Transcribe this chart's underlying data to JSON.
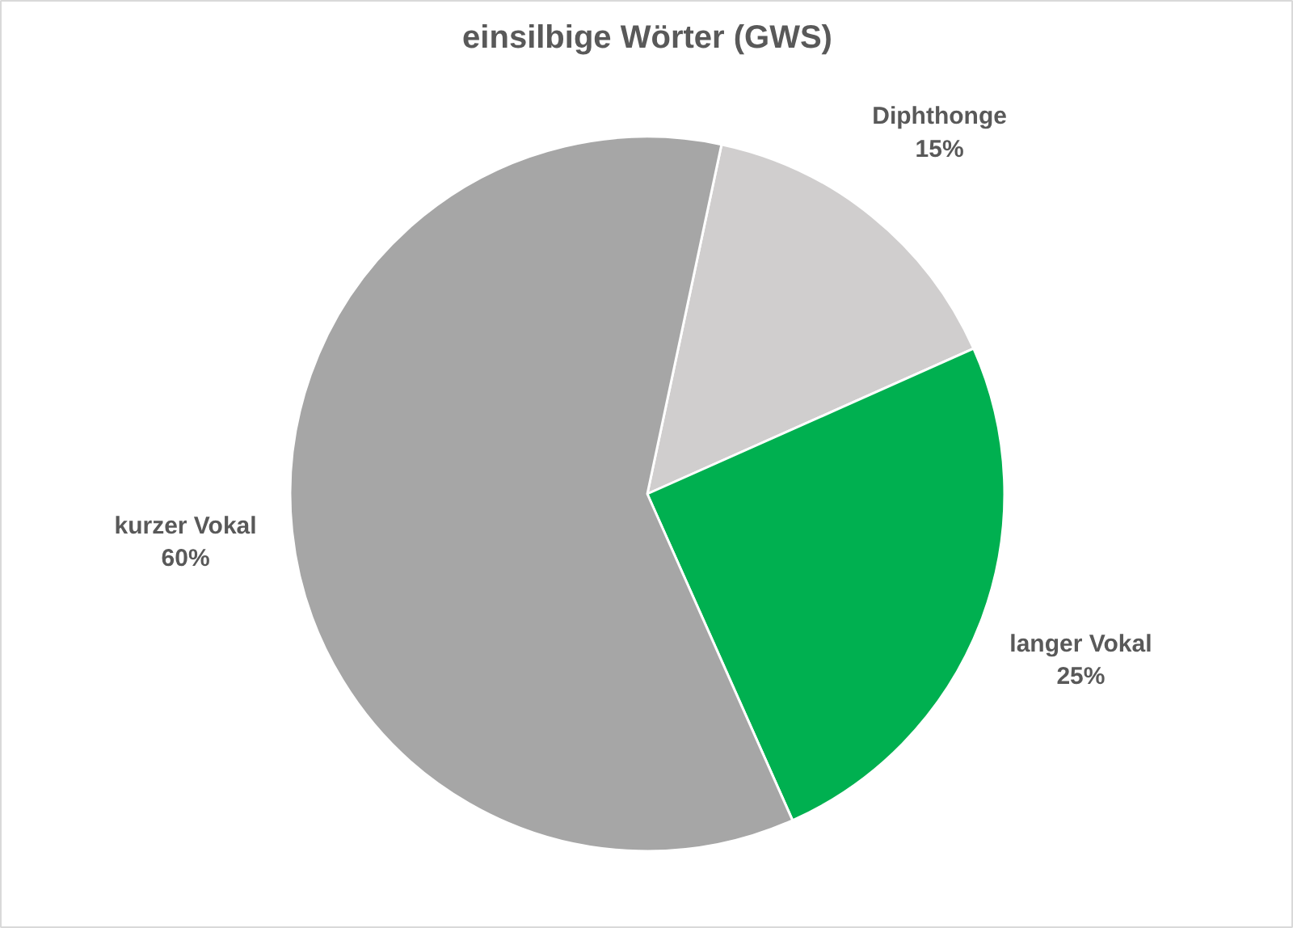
{
  "chart_data": {
    "type": "pie",
    "title": "einsilbige Wörter (GWS)",
    "categories": [
      "Diphthonge",
      "langer Vokal",
      "kurzer Vokal"
    ],
    "values": [
      15,
      25,
      60
    ],
    "value_labels": [
      "15%",
      "25%",
      "60%"
    ],
    "colors": [
      "#d0cece",
      "#00b050",
      "#a6a6a6"
    ]
  }
}
